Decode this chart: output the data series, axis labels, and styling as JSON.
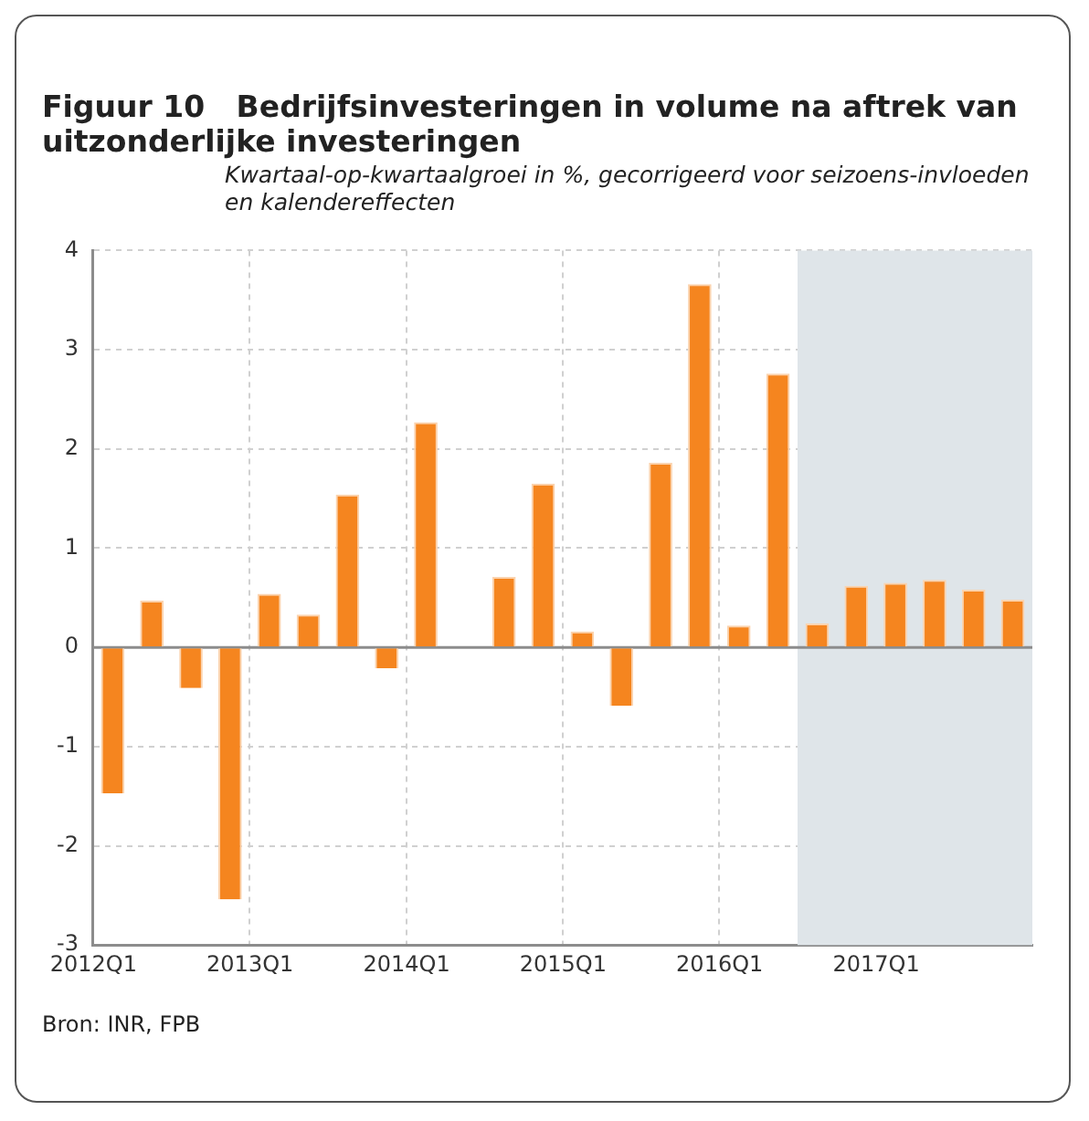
{
  "chart_data": {
    "type": "bar",
    "title": "Figuur 10   Bedrijfsinvesteringen in volume na aftrek van uitzonderlijke investeringen",
    "subtitle": "Kwartaal-op-kwartaalgroei in %, gecorrigeerd voor seizoens-invloeden en kalendereffecten",
    "categories": [
      "2012Q1",
      null,
      null,
      null,
      "2013Q1",
      null,
      null,
      null,
      "2014Q1",
      null,
      null,
      null,
      "2015Q1",
      null,
      null,
      null,
      "2016Q1",
      null,
      null,
      null,
      "2017Q1",
      null,
      null,
      null
    ],
    "values": [
      -1.47,
      0.47,
      -0.41,
      -2.54,
      0.54,
      0.33,
      1.54,
      -0.21,
      2.27,
      null,
      0.71,
      1.65,
      0.16,
      -0.59,
      1.86,
      3.66,
      0.22,
      2.76,
      0.24,
      0.62,
      0.65,
      0.68,
      0.58,
      0.48
    ],
    "color": "#f5851f",
    "ylim": [
      -3,
      4
    ],
    "yticks": [
      -3,
      -2,
      -1,
      0,
      1,
      2,
      3,
      4
    ],
    "grid": true,
    "annotations": [
      "Bron: INR, FPB"
    ]
  }
}
